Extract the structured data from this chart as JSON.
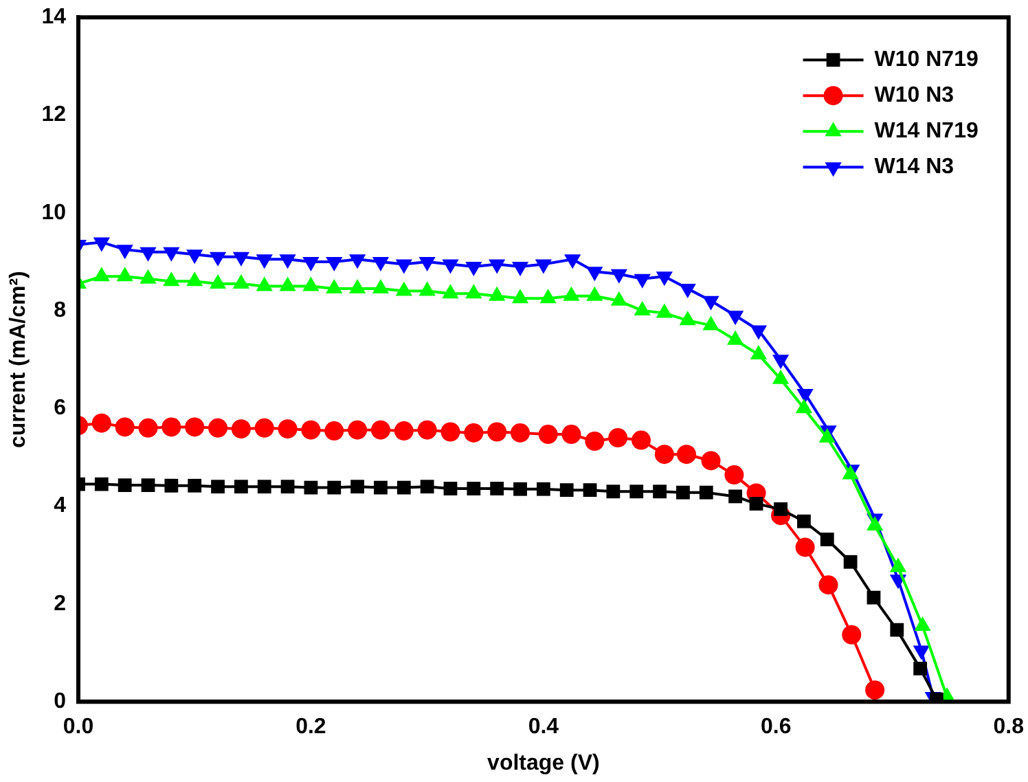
{
  "chart_data": {
    "type": "line",
    "xlabel": "voltage (V)",
    "ylabel": "current (mA/cm²)",
    "xlim": [
      0,
      0.8
    ],
    "xticks": [
      {
        "value": 0,
        "label": "0.0"
      },
      {
        "value": 0.2,
        "label": "0.2"
      },
      {
        "value": 0.4,
        "label": "0.4"
      },
      {
        "value": 0.6,
        "label": "0.6"
      },
      {
        "value": 0.8,
        "label": "0.8"
      }
    ],
    "ylim": [
      0,
      14
    ],
    "yticks": [
      0,
      2,
      4,
      6,
      8,
      10,
      12,
      14
    ],
    "grid": false,
    "legend": "top right",
    "line_style": "solid",
    "series": [
      {
        "name": "W10 N719",
        "color": "#000000",
        "marker": "square",
        "x": [
          0,
          0.02,
          0.04,
          0.06,
          0.08,
          0.1,
          0.12,
          0.14,
          0.16,
          0.18,
          0.2,
          0.22,
          0.24,
          0.26,
          0.28,
          0.3,
          0.32,
          0.34,
          0.36,
          0.38,
          0.4,
          0.42,
          0.44,
          0.46,
          0.48,
          0.5,
          0.52,
          0.54,
          0.565,
          0.583,
          0.604,
          0.624,
          0.644,
          0.664,
          0.684,
          0.704,
          0.724,
          0.738
        ],
        "values": [
          4.45,
          4.45,
          4.43,
          4.43,
          4.42,
          4.42,
          4.4,
          4.4,
          4.4,
          4.4,
          4.38,
          4.38,
          4.4,
          4.38,
          4.38,
          4.4,
          4.36,
          4.36,
          4.36,
          4.35,
          4.35,
          4.33,
          4.33,
          4.3,
          4.3,
          4.3,
          4.28,
          4.28,
          4.2,
          4.05,
          3.94,
          3.69,
          3.32,
          2.86,
          2.13,
          1.47,
          0.68,
          0.05
        ]
      },
      {
        "name": "W10 N3",
        "color": "#ff0000",
        "marker": "circle",
        "x": [
          0,
          0.02,
          0.04,
          0.06,
          0.08,
          0.1,
          0.12,
          0.14,
          0.16,
          0.18,
          0.2,
          0.22,
          0.24,
          0.26,
          0.28,
          0.3,
          0.32,
          0.34,
          0.36,
          0.38,
          0.404,
          0.424,
          0.444,
          0.464,
          0.484,
          0.504,
          0.523,
          0.544,
          0.564,
          0.583,
          0.604,
          0.625,
          0.645,
          0.665,
          0.685
        ],
        "values": [
          5.65,
          5.7,
          5.62,
          5.6,
          5.62,
          5.62,
          5.6,
          5.58,
          5.6,
          5.58,
          5.56,
          5.54,
          5.56,
          5.56,
          5.54,
          5.56,
          5.52,
          5.5,
          5.52,
          5.5,
          5.47,
          5.47,
          5.33,
          5.4,
          5.35,
          5.06,
          5.06,
          4.93,
          4.64,
          4.27,
          3.81,
          3.16,
          2.39,
          1.37,
          0.24
        ]
      },
      {
        "name": "W14 N719",
        "color": "#00ff00",
        "marker": "triangle",
        "x": [
          0,
          0.02,
          0.04,
          0.06,
          0.08,
          0.1,
          0.12,
          0.14,
          0.16,
          0.18,
          0.2,
          0.22,
          0.24,
          0.26,
          0.28,
          0.3,
          0.32,
          0.34,
          0.36,
          0.38,
          0.404,
          0.424,
          0.444,
          0.465,
          0.485,
          0.504,
          0.524,
          0.544,
          0.565,
          0.585,
          0.604,
          0.624,
          0.644,
          0.664,
          0.685,
          0.705,
          0.726,
          0.747
        ],
        "values": [
          8.55,
          8.7,
          8.7,
          8.65,
          8.6,
          8.6,
          8.55,
          8.55,
          8.5,
          8.5,
          8.5,
          8.45,
          8.45,
          8.45,
          8.4,
          8.4,
          8.35,
          8.35,
          8.3,
          8.25,
          8.25,
          8.3,
          8.3,
          8.2,
          8.0,
          7.95,
          7.8,
          7.7,
          7.4,
          7.1,
          6.6,
          6.0,
          5.4,
          4.65,
          3.6,
          2.75,
          1.55,
          0.1
        ]
      },
      {
        "name": "W14 N3",
        "color": "#0000ff",
        "marker": "triangle_down",
        "x": [
          0,
          0.02,
          0.04,
          0.06,
          0.08,
          0.1,
          0.12,
          0.14,
          0.16,
          0.18,
          0.2,
          0.22,
          0.24,
          0.26,
          0.28,
          0.3,
          0.32,
          0.34,
          0.36,
          0.38,
          0.4,
          0.425,
          0.444,
          0.465,
          0.485,
          0.504,
          0.524,
          0.544,
          0.565,
          0.585,
          0.604,
          0.625,
          0.645,
          0.665,
          0.685,
          0.705,
          0.725,
          0.735
        ],
        "values": [
          9.35,
          9.4,
          9.25,
          9.2,
          9.2,
          9.15,
          9.1,
          9.1,
          9.05,
          9.05,
          9.0,
          9.0,
          9.05,
          9.0,
          8.95,
          9.0,
          8.95,
          8.9,
          8.95,
          8.9,
          8.95,
          9.05,
          8.8,
          8.75,
          8.65,
          8.7,
          8.45,
          8.2,
          7.9,
          7.6,
          7.0,
          6.3,
          5.55,
          4.75,
          3.75,
          2.5,
          1.05,
          0.1
        ]
      }
    ]
  }
}
